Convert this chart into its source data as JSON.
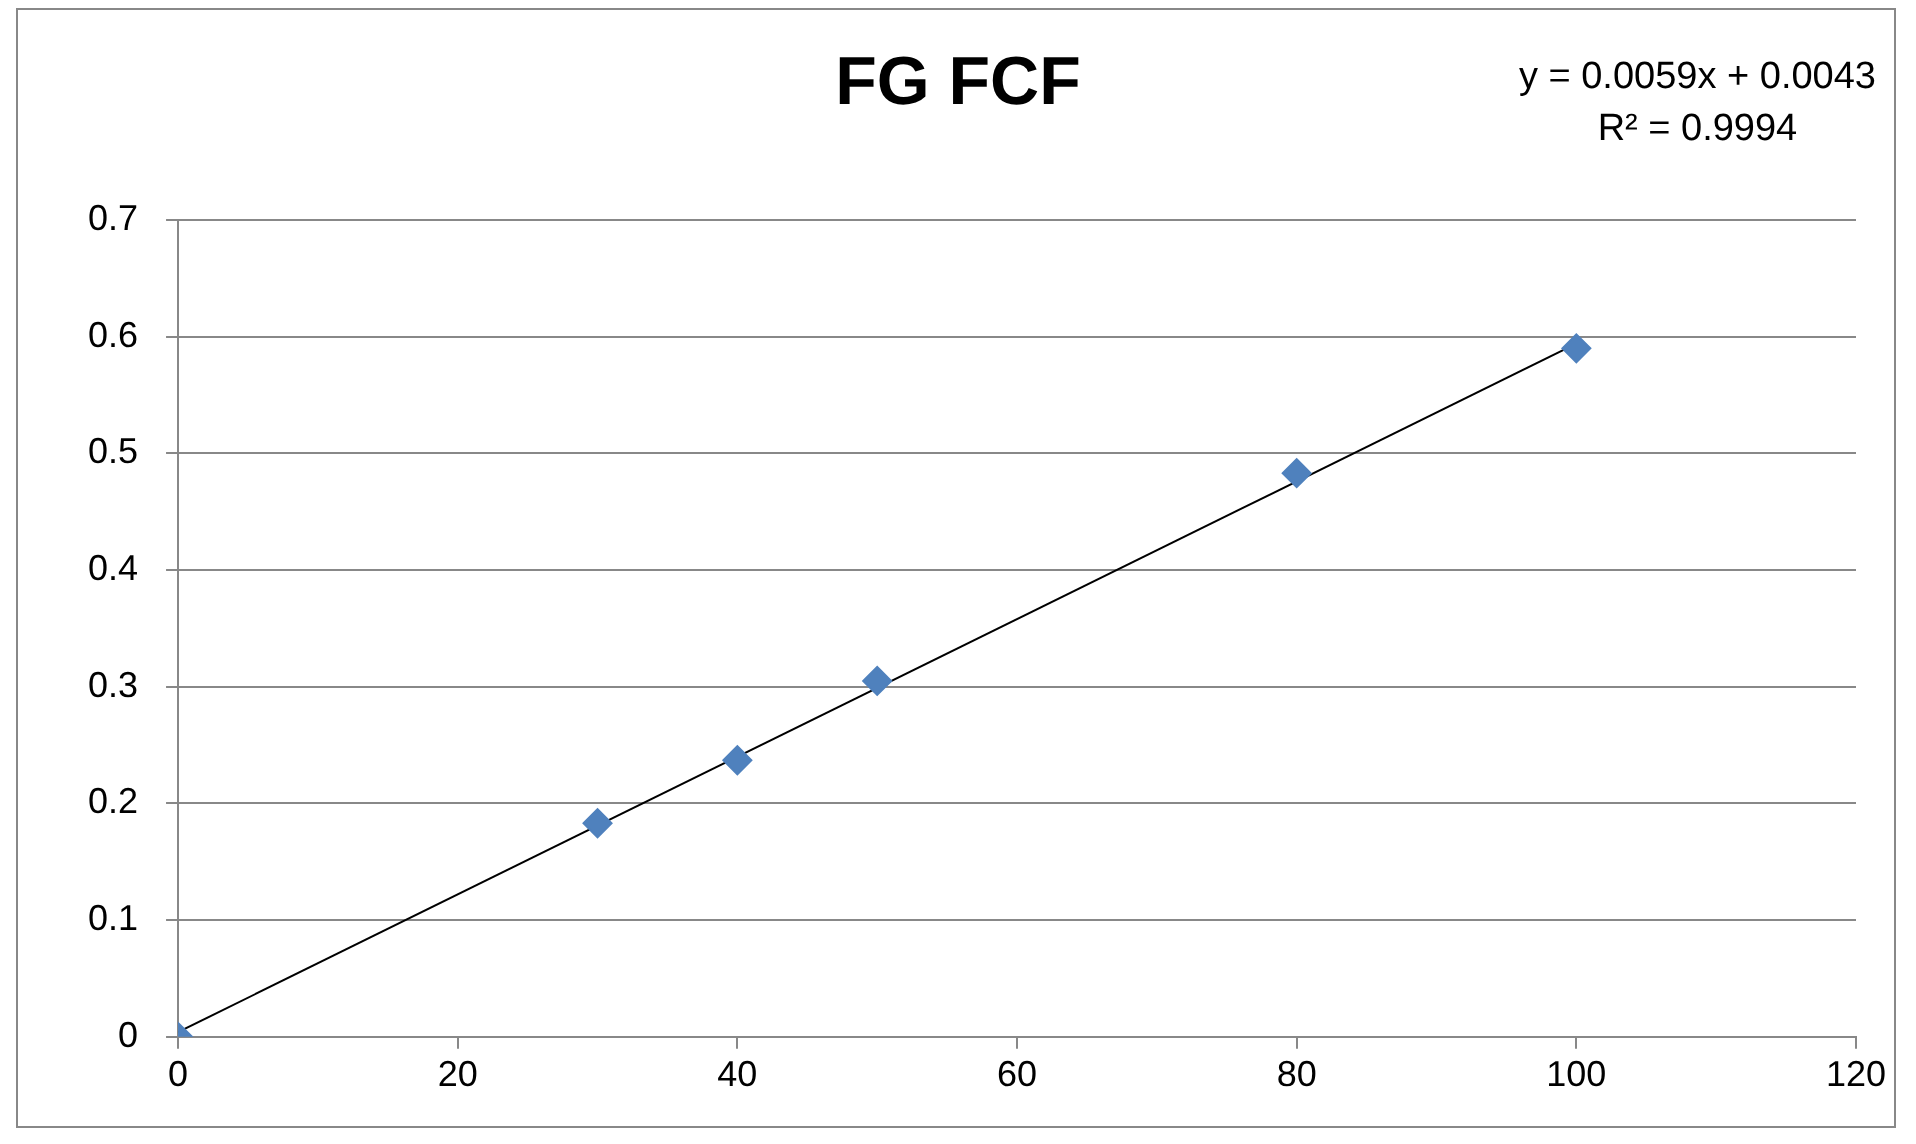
{
  "chart_data": {
    "type": "scatter",
    "title": "FG FCF",
    "series": [
      {
        "type": "scatter",
        "color": "#4f81bd",
        "marker": "diamond",
        "x": [
          0,
          30,
          40,
          50,
          80,
          100
        ],
        "values": [
          0,
          0.183,
          0.237,
          0.305,
          0.483,
          0.59
        ]
      },
      {
        "type": "line",
        "color": "#000000",
        "marker": "none",
        "x": [
          0,
          100
        ],
        "values": [
          0.004,
          0.594
        ]
      }
    ],
    "xlim": [
      0,
      120
    ],
    "xticks": [
      0,
      20,
      40,
      60,
      80,
      100,
      120
    ],
    "ylim": [
      0,
      0.7
    ],
    "yticks": [
      0,
      0.1,
      0.2,
      0.3,
      0.4,
      0.5,
      0.6,
      0.7
    ],
    "grid": "y",
    "legend": false,
    "annotations": [
      "y = 0.0059x + 0.0043",
      "R² = 0.9994"
    ]
  }
}
